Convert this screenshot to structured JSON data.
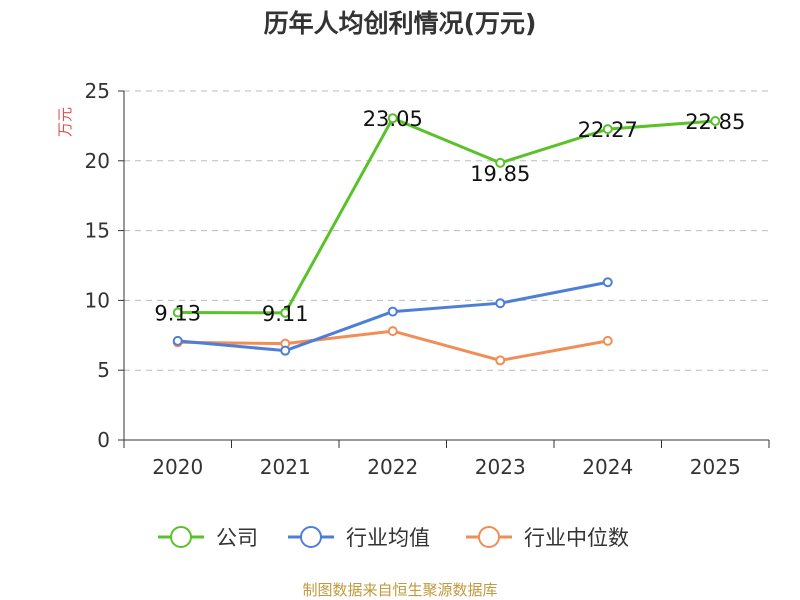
{
  "chart_data": {
    "type": "line",
    "title": "历年人均创利情况(万元)",
    "ylabel": "万元",
    "categories": [
      "2020",
      "2021",
      "2022",
      "2023",
      "2024",
      "2025"
    ],
    "ylim": [
      0,
      25
    ],
    "yticks": [
      0,
      5,
      10,
      15,
      20,
      25
    ],
    "grid": true,
    "legend_position": "bottom",
    "series": [
      {
        "name": "公司",
        "color": "#5ac229",
        "values": [
          9.13,
          9.11,
          23.05,
          19.85,
          22.27,
          22.85
        ],
        "labels": [
          "9.13",
          "9.11",
          "23.05",
          "19.85",
          "22.27",
          "22.85"
        ]
      },
      {
        "name": "行业均值",
        "color": "#4e7fd8",
        "values": [
          7.1,
          6.4,
          9.2,
          9.8,
          11.3,
          null
        ]
      },
      {
        "name": "行业中位数",
        "color": "#f28d55",
        "values": [
          7.0,
          6.9,
          7.8,
          5.7,
          7.1,
          null
        ]
      }
    ]
  },
  "source": {
    "text": "制图数据来自恒生聚源数据库",
    "color": "#c09a3c"
  },
  "colors": {
    "axis": "#333333",
    "grid": "#bbbbbb",
    "ylabel": "#e05050"
  }
}
